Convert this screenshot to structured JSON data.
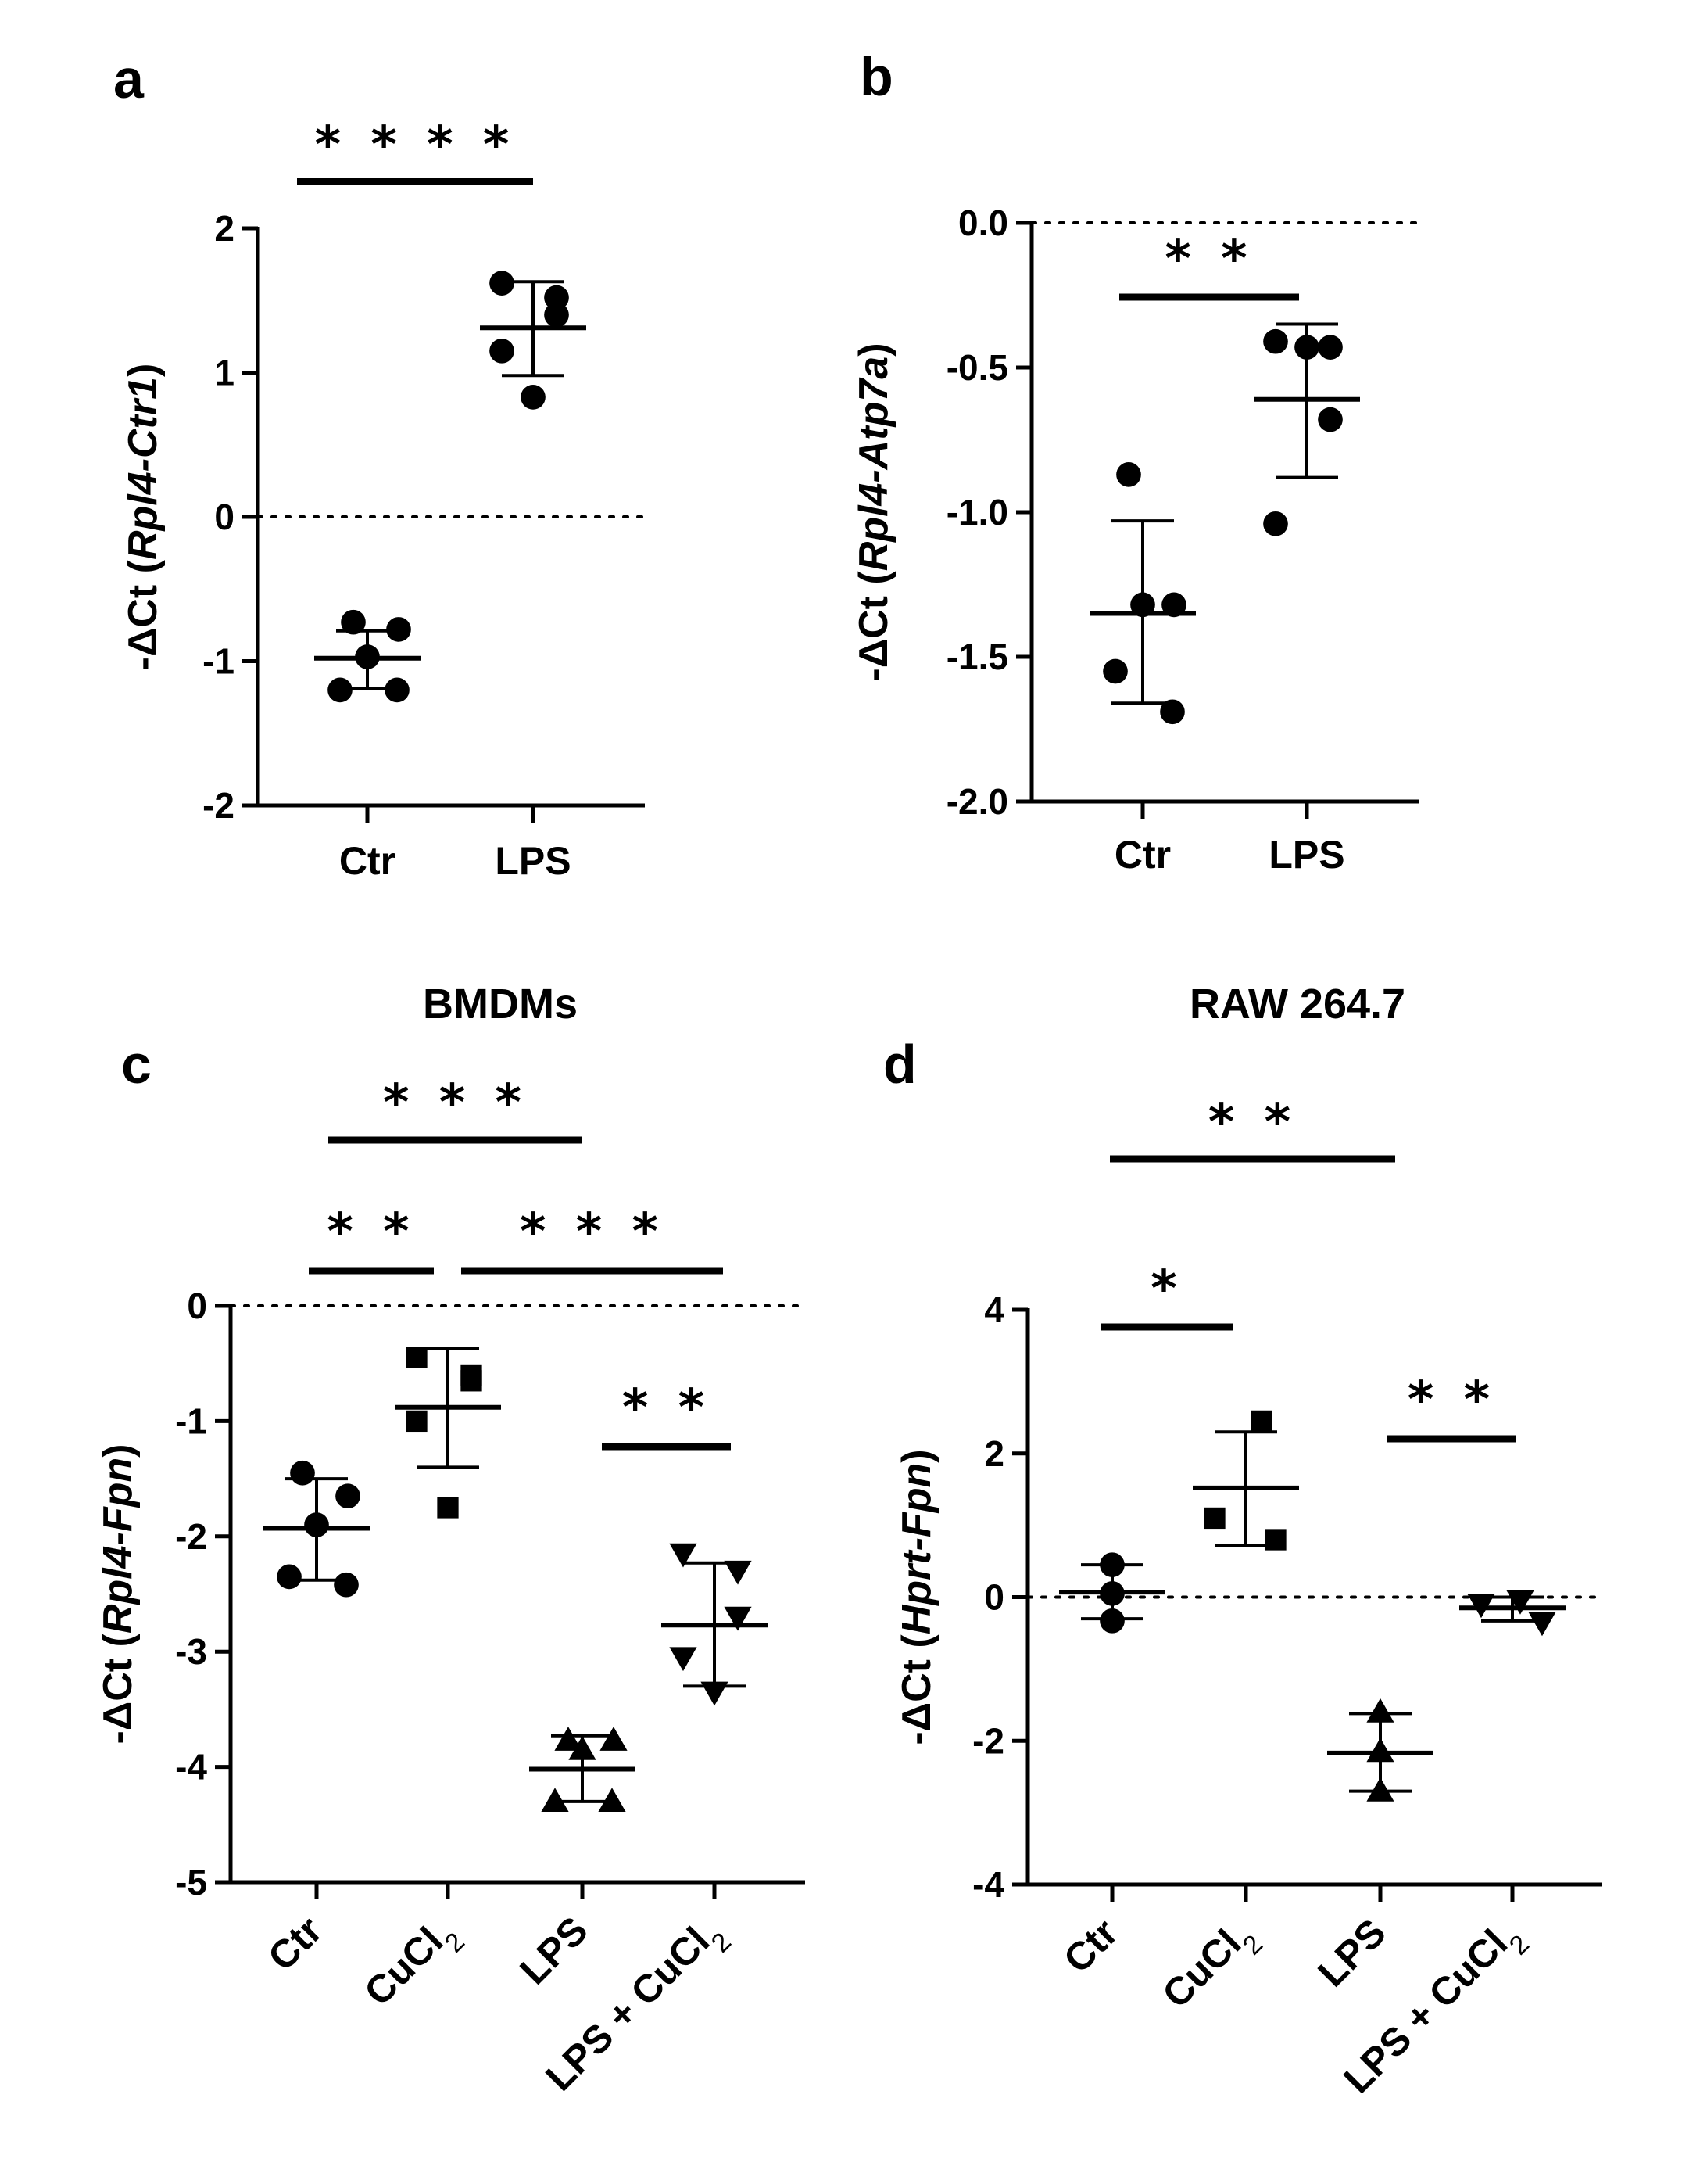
{
  "chart_data": [
    {
      "panel": "a",
      "type": "scatter",
      "title": "",
      "ylabel_prefix": "-ΔCt (",
      "ylabel_gene": "Rpl4-Ctr1",
      "ylabel_suffix": ")",
      "ylim": [
        -2,
        2
      ],
      "yticks": [
        -2,
        -1,
        0,
        1,
        2
      ],
      "ytick_labels": [
        "-2",
        "-1",
        "0",
        "1",
        "2"
      ],
      "categories": [
        "Ctr",
        "LPS"
      ],
      "groups": [
        {
          "name": "Ctr",
          "marker": "circle",
          "points": [
            -0.73,
            -0.78,
            -0.97,
            -1.2,
            -1.2
          ],
          "mean": -0.98,
          "sd_low": -1.19,
          "sd_high": -0.79
        },
        {
          "name": "LPS",
          "marker": "circle",
          "points": [
            1.62,
            1.52,
            1.4,
            1.15,
            0.83
          ],
          "mean": 1.31,
          "sd_low": 0.98,
          "sd_high": 1.63
        }
      ],
      "significance": [
        {
          "from": 0,
          "to": 1,
          "label": "****"
        }
      ]
    },
    {
      "panel": "b",
      "type": "scatter",
      "title": "",
      "ylabel_prefix": "-ΔCt (",
      "ylabel_gene": "Rpl4-Atp7a",
      "ylabel_suffix": ")",
      "ylim": [
        -2.0,
        0.0
      ],
      "yticks": [
        -2.0,
        -1.5,
        -1.0,
        -0.5,
        0.0
      ],
      "ytick_labels": [
        "-2.0",
        "-1.5",
        "-1.0",
        "-0.5",
        "0.0"
      ],
      "categories": [
        "Ctr",
        "LPS"
      ],
      "groups": [
        {
          "name": "Ctr",
          "marker": "circle",
          "points": [
            -0.87,
            -1.32,
            -1.32,
            -1.55,
            -1.69
          ],
          "mean": -1.35,
          "sd_low": -1.66,
          "sd_high": -1.03
        },
        {
          "name": "LPS",
          "marker": "circle",
          "points": [
            -0.41,
            -0.43,
            -0.68,
            -1.04,
            -0.43
          ],
          "mean": -0.61,
          "sd_low": -0.88,
          "sd_high": -0.35
        }
      ],
      "significance": [
        {
          "from": 0,
          "to": 1,
          "label": "**"
        }
      ]
    },
    {
      "panel": "c",
      "type": "scatter",
      "title": "BMDMs",
      "ylabel_prefix": "-ΔCt (",
      "ylabel_gene": "Rpl4-Fpn",
      "ylabel_suffix": ")",
      "ylim": [
        -5,
        0
      ],
      "yticks": [
        -5,
        -4,
        -3,
        -2,
        -1,
        0
      ],
      "ytick_labels": [
        "-5",
        "-4",
        "-3",
        "-2",
        "-1",
        "0"
      ],
      "categories": [
        "Ctr",
        "CuCl2",
        "LPS",
        "LPS + CuCl2"
      ],
      "groups": [
        {
          "name": "Ctr",
          "marker": "circle",
          "points": [
            -1.45,
            -1.65,
            -1.9,
            -2.35,
            -2.42
          ],
          "mean": -1.93,
          "sd_low": -2.38,
          "sd_high": -1.5
        },
        {
          "name": "CuCl2",
          "marker": "square",
          "points": [
            -0.45,
            -0.65,
            -0.6,
            -1.0,
            -1.75
          ],
          "mean": -0.88,
          "sd_low": -1.4,
          "sd_high": -0.37
        },
        {
          "name": "LPS",
          "marker": "triangle-up",
          "points": [
            -3.77,
            -3.77,
            -3.85,
            -4.3,
            -4.3
          ],
          "mean": -4.02,
          "sd_low": -4.3,
          "sd_high": -3.73
        },
        {
          "name": "LPS + CuCl2",
          "marker": "triangle-down",
          "points": [
            -2.15,
            -2.3,
            -2.7,
            -3.05,
            -3.35
          ],
          "mean": -2.77,
          "sd_low": -3.3,
          "sd_high": -2.23
        }
      ],
      "significance": [
        {
          "from": 0,
          "to": 2,
          "label": "***"
        },
        {
          "from": 0,
          "to": 1,
          "label": "**"
        },
        {
          "from": 1,
          "to": 3,
          "label": "***"
        },
        {
          "from": 2,
          "to": 3,
          "label": "**"
        }
      ]
    },
    {
      "panel": "d",
      "type": "scatter",
      "title": "RAW 264.7",
      "ylabel_prefix": "-ΔCt (",
      "ylabel_gene": "Hprt-Fpn",
      "ylabel_suffix": ")",
      "ylim": [
        -4,
        4
      ],
      "yticks": [
        -4,
        -2,
        0,
        2,
        4
      ],
      "ytick_labels": [
        "-4",
        "-2",
        "0",
        "2",
        "4"
      ],
      "categories": [
        "Ctr",
        "CuCl2",
        "LPS",
        "LPS + CuCl2"
      ],
      "groups": [
        {
          "name": "Ctr",
          "marker": "circle",
          "points": [
            0.45,
            0.05,
            -0.33
          ],
          "mean": 0.07,
          "sd_low": -0.3,
          "sd_high": 0.45
        },
        {
          "name": "CuCl2",
          "marker": "square",
          "points": [
            2.45,
            1.1,
            0.8
          ],
          "mean": 1.52,
          "sd_low": 0.72,
          "sd_high": 2.3
        },
        {
          "name": "LPS",
          "marker": "triangle-up",
          "points": [
            -1.6,
            -2.15,
            -2.7
          ],
          "mean": -2.17,
          "sd_low": -2.7,
          "sd_high": -1.62
        },
        {
          "name": "LPS + CuCl2",
          "marker": "triangle-down",
          "points": [
            -0.05,
            -0.1,
            -0.35
          ],
          "mean": -0.15,
          "sd_low": -0.33,
          "sd_high": 0.0
        }
      ],
      "significance": [
        {
          "from": 0,
          "to": 2,
          "label": "**"
        },
        {
          "from": 0,
          "to": 1,
          "label": "*"
        },
        {
          "from": 2,
          "to": 3,
          "label": "**"
        }
      ]
    }
  ]
}
